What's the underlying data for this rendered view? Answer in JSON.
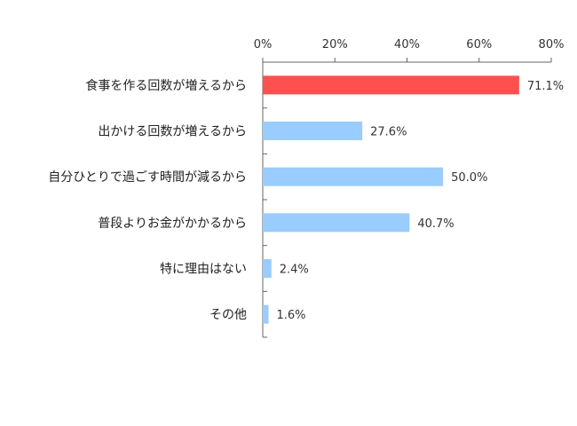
{
  "chart_data": {
    "type": "bar",
    "orientation": "horizontal",
    "categories": [
      "食事を作る回数が増えるから",
      "出かける回数が増えるから",
      "自分ひとりで過ごす時間が減るから",
      "普段よりお金がかかるから",
      "特に理由はない",
      "その他"
    ],
    "values": [
      71.1,
      27.6,
      50.0,
      40.7,
      2.4,
      1.6
    ],
    "value_labels": [
      "71.1%",
      "27.6%",
      "50.0%",
      "40.7%",
      "2.4%",
      "1.6%"
    ],
    "xlim": [
      0,
      80
    ],
    "xticks": [
      0,
      20,
      40,
      60,
      80
    ],
    "xtick_labels": [
      "0%",
      "20%",
      "40%",
      "60%",
      "80%"
    ],
    "axis_position": "top",
    "grid": false,
    "colors": {
      "highlight": "#ff5050",
      "bar": "#99ccff",
      "axis": "#666666"
    },
    "highlight_index": 0
  }
}
